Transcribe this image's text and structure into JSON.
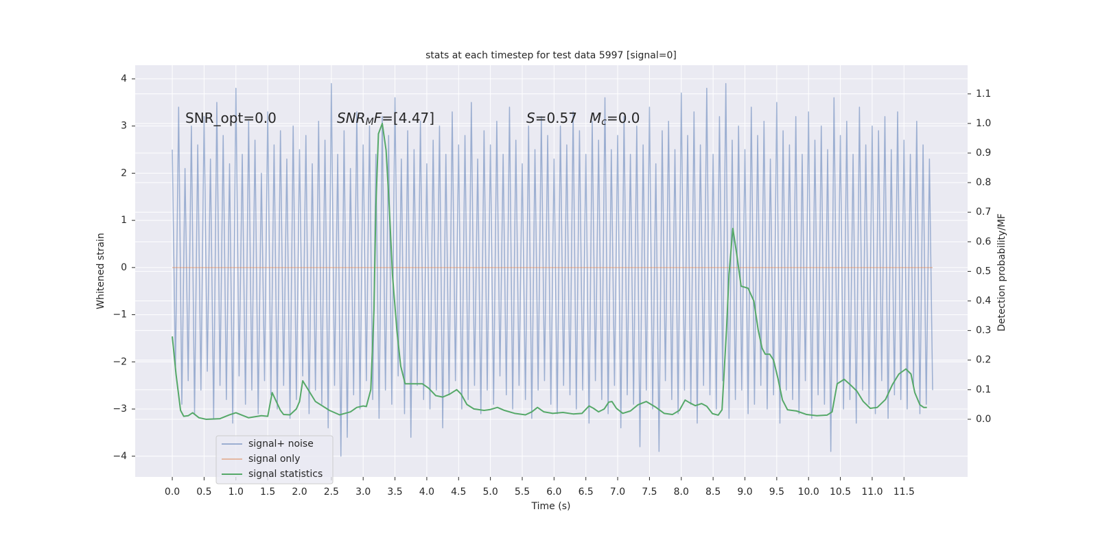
{
  "chart_data": {
    "type": "line",
    "title": "stats at each timestep for test data 5997 [signal=0]",
    "xlabel": "Time (s)",
    "ylabel": "Whitened strain",
    "y2label": "Detection probability/MF",
    "xlim": [
      -0.583,
      12.5
    ],
    "ylim": [
      -4.44,
      4.29
    ],
    "y2lim": [
      -0.195,
      1.197
    ],
    "xticks": [
      {
        "value": 0,
        "label": "0.0"
      },
      {
        "value": 0.5,
        "label": "0.5"
      },
      {
        "value": 1,
        "label": "1.0"
      },
      {
        "value": 1.5,
        "label": "1.5"
      },
      {
        "value": 2,
        "label": "2.0"
      },
      {
        "value": 2.5,
        "label": "2.5"
      },
      {
        "value": 3,
        "label": "3.0"
      },
      {
        "value": 3.5,
        "label": "3.5"
      },
      {
        "value": 4,
        "label": "4.0"
      },
      {
        "value": 4.5,
        "label": "4.5"
      },
      {
        "value": 5,
        "label": "5.0"
      },
      {
        "value": 5.5,
        "label": "5.5"
      },
      {
        "value": 6,
        "label": "6.0"
      },
      {
        "value": 6.5,
        "label": "6.5"
      },
      {
        "value": 7,
        "label": "7.0"
      },
      {
        "value": 7.5,
        "label": "7.5"
      },
      {
        "value": 8,
        "label": "8.0"
      },
      {
        "value": 8.5,
        "label": "8.5"
      },
      {
        "value": 9,
        "label": "9.0"
      },
      {
        "value": 9.5,
        "label": "9.5"
      },
      {
        "value": 10,
        "label": "10.0"
      },
      {
        "value": 10.5,
        "label": "10.5"
      },
      {
        "value": 11,
        "label": "11.0"
      },
      {
        "value": 11.5,
        "label": "11.5"
      }
    ],
    "yticks": [
      {
        "value": -4,
        "label": "−4"
      },
      {
        "value": -3,
        "label": "−3"
      },
      {
        "value": -2,
        "label": "−2"
      },
      {
        "value": -1,
        "label": "−1"
      },
      0,
      1,
      2,
      3,
      4
    ],
    "y2ticks": [
      {
        "value": 0,
        "label": "0.0"
      },
      {
        "value": 0.1,
        "label": "0.1"
      },
      {
        "value": 0.2,
        "label": "0.2"
      },
      {
        "value": 0.3,
        "label": "0.3"
      },
      {
        "value": 0.4,
        "label": "0.4"
      },
      {
        "value": 0.5,
        "label": "0.5"
      },
      {
        "value": 0.6,
        "label": "0.6"
      },
      {
        "value": 0.7,
        "label": "0.7"
      },
      {
        "value": 0.8,
        "label": "0.8"
      },
      {
        "value": 0.9,
        "label": "0.9"
      },
      {
        "value": 1.0,
        "label": "1.0"
      },
      {
        "value": 1.1,
        "label": "1.1"
      }
    ],
    "grid": true,
    "legend": "lower left",
    "annotations": [
      [
        {
          "text": "SNR_opt=0.0",
          "style": "normal"
        }
      ],
      [
        {
          "text": "SNR",
          "style": "italic"
        },
        {
          "text": "M",
          "style": "sub"
        },
        {
          "text": "F",
          "style": "italic"
        },
        {
          "text": "=[4.47]",
          "style": "normal"
        }
      ],
      [
        {
          "text": "S",
          "style": "italic"
        },
        {
          "text": "=0.57",
          "style": "normal"
        }
      ],
      [
        {
          "text": "M",
          "style": "italic"
        },
        {
          "text": "c",
          "style": "sub"
        },
        {
          "text": "=0.0",
          "style": "normal"
        }
      ]
    ],
    "series": [
      {
        "name": "signal+ noise",
        "color": "#4c72b0",
        "alpha": 0.5,
        "axis": "y",
        "x": [
          0,
          0.05,
          0.1,
          0.15,
          0.2,
          0.25,
          0.3,
          0.35,
          0.4,
          0.45,
          0.5,
          0.55,
          0.6,
          0.65,
          0.7,
          0.75,
          0.8,
          0.85,
          0.9,
          0.95,
          1,
          1.05,
          1.1,
          1.15,
          1.2,
          1.25,
          1.3,
          1.35,
          1.4,
          1.45,
          1.5,
          1.55,
          1.6,
          1.65,
          1.7,
          1.75,
          1.8,
          1.85,
          1.9,
          1.95,
          2,
          2.05,
          2.1,
          2.15,
          2.2,
          2.25,
          2.3,
          2.35,
          2.4,
          2.45,
          2.5,
          2.55,
          2.6,
          2.65,
          2.7,
          2.75,
          2.8,
          2.85,
          2.9,
          2.95,
          3,
          3.05,
          3.1,
          3.15,
          3.2,
          3.25,
          3.3,
          3.35,
          3.4,
          3.45,
          3.5,
          3.55,
          3.6,
          3.65,
          3.7,
          3.75,
          3.8,
          3.85,
          3.9,
          3.95,
          4,
          4.05,
          4.1,
          4.15,
          4.2,
          4.25,
          4.3,
          4.35,
          4.4,
          4.45,
          4.5,
          4.55,
          4.6,
          4.65,
          4.7,
          4.75,
          4.8,
          4.85,
          4.9,
          4.95,
          5,
          5.05,
          5.1,
          5.15,
          5.2,
          5.25,
          5.3,
          5.35,
          5.4,
          5.45,
          5.5,
          5.55,
          5.6,
          5.65,
          5.7,
          5.75,
          5.8,
          5.85,
          5.9,
          5.95,
          6,
          6.05,
          6.1,
          6.15,
          6.2,
          6.25,
          6.3,
          6.35,
          6.4,
          6.45,
          6.5,
          6.55,
          6.6,
          6.65,
          6.7,
          6.75,
          6.8,
          6.85,
          6.9,
          6.95,
          7,
          7.05,
          7.1,
          7.15,
          7.2,
          7.25,
          7.3,
          7.35,
          7.4,
          7.45,
          7.5,
          7.55,
          7.6,
          7.65,
          7.7,
          7.75,
          7.8,
          7.85,
          7.9,
          7.95,
          8,
          8.05,
          8.1,
          8.15,
          8.2,
          8.25,
          8.3,
          8.35,
          8.4,
          8.45,
          8.5,
          8.55,
          8.6,
          8.65,
          8.7,
          8.75,
          8.8,
          8.85,
          8.9,
          8.95,
          9,
          9.05,
          9.1,
          9.15,
          9.2,
          9.25,
          9.3,
          9.35,
          9.4,
          9.45,
          9.5,
          9.55,
          9.6,
          9.65,
          9.7,
          9.75,
          9.8,
          9.85,
          9.9,
          9.95,
          10,
          10.05,
          10.1,
          10.15,
          10.2,
          10.25,
          10.3,
          10.35,
          10.4,
          10.45,
          10.5,
          10.55,
          10.6,
          10.65,
          10.7,
          10.75,
          10.8,
          10.85,
          10.9,
          10.95,
          11,
          11.05,
          11.1,
          11.15,
          11.2,
          11.25,
          11.3,
          11.35,
          11.4,
          11.45,
          11.5,
          11.55,
          11.6,
          11.65,
          11.7,
          11.75,
          11.8,
          11.85,
          11.9,
          11.95
        ],
        "values": [
          2.5,
          -2.2,
          3.4,
          -2.9,
          2.1,
          -2.4,
          3.0,
          -3.1,
          2.6,
          -2.6,
          3.2,
          -2.2,
          2.3,
          -3.2,
          3.5,
          -2.5,
          2.8,
          -2.8,
          2.2,
          -3.3,
          3.8,
          -2.3,
          2.4,
          -2.9,
          3.1,
          -2.6,
          2.7,
          -3.1,
          2.0,
          -2.4,
          3.3,
          -2.7,
          2.6,
          -3.0,
          2.9,
          -2.5,
          2.3,
          -3.2,
          3.0,
          -2.8,
          2.5,
          -2.3,
          2.8,
          -3.1,
          2.2,
          -2.6,
          3.1,
          -2.9,
          2.7,
          -3.4,
          3.9,
          -2.5,
          2.4,
          -4.0,
          2.9,
          -3.6,
          2.1,
          -2.7,
          3.3,
          -3.0,
          2.6,
          -2.4,
          3.0,
          -2.8,
          2.4,
          -3.2,
          3.2,
          -2.6,
          2.8,
          -2.9,
          3.6,
          -2.3,
          2.3,
          -3.1,
          2.9,
          -3.6,
          2.5,
          -2.5,
          3.1,
          -2.8,
          2.2,
          -3.0,
          2.7,
          -2.6,
          3.0,
          -3.4,
          2.4,
          -2.7,
          3.3,
          -2.4,
          2.6,
          -3.0,
          2.8,
          -2.8,
          3.5,
          -2.5,
          2.3,
          -3.1,
          2.9,
          -2.6,
          2.6,
          -2.9,
          3.1,
          -2.3,
          2.4,
          -2.7,
          3.4,
          -3.0,
          2.7,
          -2.5,
          2.2,
          -2.8,
          3.0,
          -3.2,
          2.5,
          -2.6,
          3.2,
          -2.4,
          2.8,
          -2.9,
          2.3,
          -3.1,
          3.0,
          -2.5,
          2.6,
          -2.7,
          3.3,
          -3.0,
          2.9,
          -2.6,
          2.4,
          -3.3,
          3.1,
          -2.4,
          2.7,
          -2.8,
          3.6,
          -3.1,
          2.5,
          -2.5,
          2.8,
          -3.4,
          3.2,
          -2.7,
          2.4,
          -2.9,
          3.0,
          -3.8,
          2.6,
          -2.6,
          3.4,
          -3.0,
          2.2,
          -3.9,
          2.9,
          -2.4,
          3.1,
          -2.8,
          2.5,
          -3.1,
          3.7,
          -2.6,
          2.8,
          -2.9,
          3.3,
          -3.3,
          2.6,
          -2.5,
          3.8,
          -2.7,
          2.4,
          -3.0,
          3.2,
          -2.4,
          3.9,
          -3.2,
          2.7,
          -2.8,
          3.0,
          -2.6,
          2.5,
          -3.1,
          3.4,
          -2.9,
          2.8,
          -2.5,
          3.1,
          -3.0,
          2.3,
          -2.7,
          3.5,
          -3.3,
          2.9,
          -2.6,
          2.6,
          -2.8,
          3.2,
          -3.1,
          2.4,
          -2.4,
          3.3,
          -3.2,
          2.7,
          -2.7,
          3.0,
          -2.9,
          2.5,
          -3.9,
          3.6,
          -2.5,
          2.8,
          -3.0,
          3.1,
          -2.8,
          2.4,
          -3.3,
          3.4,
          -2.6,
          2.6,
          -2.9,
          3.0,
          -3.1,
          2.9,
          -2.4,
          3.2,
          -3.2,
          2.5,
          -2.7,
          3.3,
          -2.8,
          2.7,
          -3.0,
          2.4,
          -2.5,
          3.1,
          -3.1,
          2.6,
          -2.9,
          2.3,
          -2.6
        ]
      },
      {
        "name": "signal only",
        "color": "#dd8452",
        "alpha": 0.5,
        "axis": "y",
        "x": [
          0,
          11.95
        ],
        "values": [
          0,
          0
        ]
      },
      {
        "name": "signal statistics",
        "color": "#55a868",
        "alpha": 1,
        "axis": "y2",
        "x": [
          0,
          0.06,
          0.13,
          0.18,
          0.25,
          0.32,
          0.42,
          0.53,
          0.75,
          0.9,
          1.0,
          1.2,
          1.4,
          1.5,
          1.57,
          1.7,
          1.75,
          1.85,
          1.95,
          2.0,
          2.05,
          2.25,
          2.47,
          2.63,
          2.8,
          2.9,
          3.0,
          3.05,
          3.12,
          3.17,
          3.2,
          3.24,
          3.3,
          3.36,
          3.41,
          3.46,
          3.53,
          3.59,
          3.66,
          3.76,
          3.93,
          4.03,
          4.14,
          4.25,
          4.36,
          4.47,
          4.54,
          4.63,
          4.74,
          4.9,
          5.0,
          5.11,
          5.22,
          5.38,
          5.55,
          5.65,
          5.74,
          5.84,
          5.98,
          6.14,
          6.3,
          6.44,
          6.55,
          6.62,
          6.7,
          6.79,
          6.86,
          6.91,
          6.98,
          7.08,
          7.2,
          7.32,
          7.45,
          7.59,
          7.73,
          7.86,
          7.97,
          8.06,
          8.13,
          8.22,
          8.32,
          8.4,
          8.49,
          8.58,
          8.64,
          8.71,
          8.75,
          8.81,
          8.87,
          8.94,
          9.05,
          9.14,
          9.21,
          9.27,
          9.32,
          9.39,
          9.45,
          9.52,
          9.59,
          9.67,
          9.81,
          9.97,
          10.13,
          10.29,
          10.37,
          10.45,
          10.56,
          10.65,
          10.76,
          10.86,
          10.97,
          11.08,
          11.21,
          11.32,
          11.42,
          11.53,
          11.61,
          11.67,
          11.75,
          11.81,
          11.86
        ],
        "values": [
          0.28,
          0.15,
          0.03,
          0.01,
          0.012,
          0.022,
          0.005,
          0.0,
          0.002,
          0.015,
          0.022,
          0.005,
          0.012,
          0.01,
          0.09,
          0.03,
          0.016,
          0.015,
          0.035,
          0.06,
          0.13,
          0.06,
          0.03,
          0.015,
          0.025,
          0.04,
          0.045,
          0.043,
          0.1,
          0.37,
          0.72,
          0.965,
          1.0,
          0.91,
          0.72,
          0.49,
          0.3,
          0.18,
          0.12,
          0.12,
          0.12,
          0.105,
          0.08,
          0.075,
          0.085,
          0.1,
          0.085,
          0.05,
          0.035,
          0.03,
          0.033,
          0.04,
          0.03,
          0.02,
          0.015,
          0.025,
          0.04,
          0.025,
          0.02,
          0.023,
          0.018,
          0.02,
          0.045,
          0.037,
          0.025,
          0.035,
          0.058,
          0.06,
          0.037,
          0.02,
          0.028,
          0.049,
          0.06,
          0.042,
          0.02,
          0.016,
          0.03,
          0.065,
          0.056,
          0.046,
          0.053,
          0.044,
          0.019,
          0.014,
          0.032,
          0.3,
          0.49,
          0.645,
          0.56,
          0.45,
          0.443,
          0.4,
          0.3,
          0.24,
          0.22,
          0.22,
          0.2,
          0.137,
          0.065,
          0.032,
          0.028,
          0.016,
          0.012,
          0.014,
          0.025,
          0.12,
          0.135,
          0.118,
          0.095,
          0.06,
          0.037,
          0.04,
          0.067,
          0.118,
          0.153,
          0.17,
          0.153,
          0.09,
          0.049,
          0.04,
          0.04
        ]
      }
    ]
  }
}
